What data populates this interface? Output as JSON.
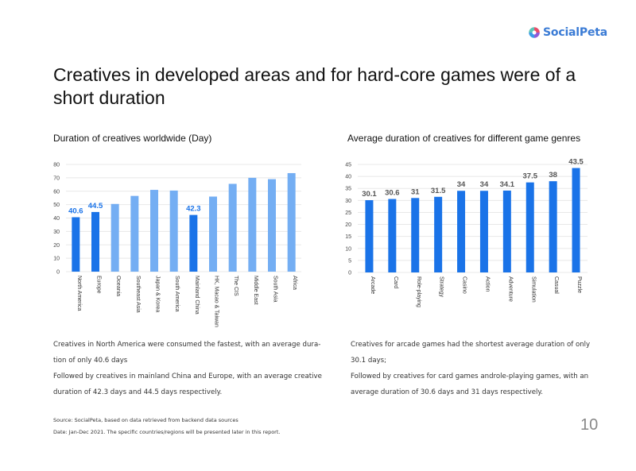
{
  "logo": {
    "text": "SocialPeta"
  },
  "title": "Creatives in developed areas and for hard-core games were of a short duration",
  "chart_data": [
    {
      "type": "bar",
      "title": "Duration of creatives worldwide (Day)",
      "categories": [
        "North America",
        "Europe",
        "Oceania",
        "Southeast Asia",
        "Japan & Korea",
        "South America",
        "Mainland China",
        "HK, Macao & Taiwan",
        "The CIS",
        "Middle East",
        "South Asia",
        "Africa"
      ],
      "values": [
        40.6,
        44.5,
        50.5,
        56.5,
        61,
        60.5,
        42.3,
        56,
        65.5,
        70,
        69,
        73.5
      ],
      "data_labels": [
        "40.6",
        "44.5",
        "",
        "",
        "",
        "",
        "42.3",
        "",
        "",
        "",
        "",
        ""
      ],
      "highlight": [
        true,
        true,
        false,
        false,
        false,
        false,
        true,
        false,
        false,
        false,
        false,
        false
      ],
      "ylim": [
        0,
        80
      ],
      "yticks": [
        0,
        10,
        20,
        30,
        40,
        50,
        60,
        70,
        80
      ],
      "xlabel": "",
      "ylabel": "",
      "grid": true,
      "colors": {
        "highlight": "#1a73e8",
        "normal": "#74aef3",
        "grid": "#e8e8e8"
      }
    },
    {
      "type": "bar",
      "title": "Average duration of creatives for different game genres",
      "categories": [
        "Arcade",
        "Card",
        "Role-playing",
        "Strategy",
        "Casino",
        "Action",
        "Adventure",
        "Simulation",
        "Casual",
        "Puzzle"
      ],
      "values": [
        30.1,
        30.6,
        31,
        31.5,
        34,
        34,
        34.1,
        37.5,
        38,
        43.5
      ],
      "data_labels": [
        "30.1",
        "30.6",
        "31",
        "31.5",
        "34",
        "34",
        "34.1",
        "37.5",
        "38",
        "43.5"
      ],
      "ylim": [
        0,
        45
      ],
      "yticks": [
        0,
        5,
        10,
        15,
        20,
        25,
        30,
        35,
        40,
        45
      ],
      "xlabel": "",
      "ylabel": "",
      "grid": true,
      "colors": {
        "bar": "#1a73e8",
        "label": "#555555",
        "grid": "#e8e8e8"
      }
    }
  ],
  "left_desc": [
    "Creatives in North America were consumed the fastest, with an average dura-",
    "tion of only 40.6 days",
    "Followed by creatives in mainland China and Europe, with an average creative",
    "duration of 42.3 days and 44.5 days respectively."
  ],
  "right_desc": [
    "Creatives for arcade games had the shortest average duration of only",
    "30.1 days;",
    "Followed by creatives for card games androle-playing games, with an",
    "average duration of 30.6 days and 31 days respectively."
  ],
  "footer": {
    "source": "Source: SocialPeta, based on data retrieved from backend data sources",
    "date": "Date: Jan-Dec 2021. The specific countries/regions will be presented later in this report."
  },
  "page_number": "10"
}
